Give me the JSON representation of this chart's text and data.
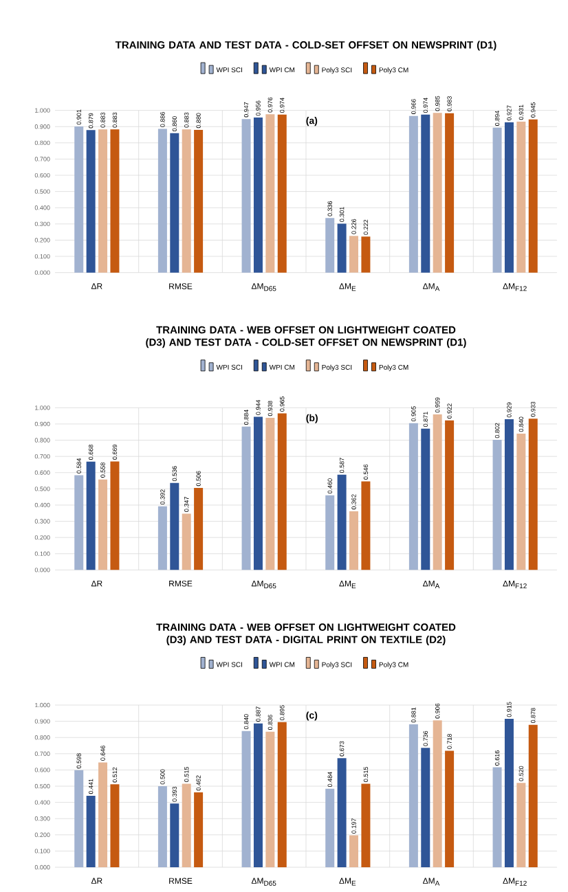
{
  "chart_data": [
    {
      "type": "bar",
      "title": "TRAINING DATA AND TEST DATA - COLD-SET OFFSET ON NEWSPRINT  (D1)",
      "categories": [
        "ΔR",
        "RMSE",
        "ΔM$_{D65}$",
        "ΔM$_{E}$",
        "ΔM$_{A}$",
        "ΔM$_{F12}$"
      ],
      "series": [
        {
          "name": "WPI SCI",
          "color": "#a1b2d0",
          "values": [
            0.901,
            0.886,
            0.947,
            0.336,
            0.966,
            0.894
          ],
          "value_labels": [
            "0.901",
            "0.886",
            "0.947",
            "0.336",
            "0.966",
            "0.894"
          ]
        },
        {
          "name": "WPI CM",
          "color": "#2f5597",
          "values": [
            0.879,
            0.86,
            0.956,
            0.301,
            0.974,
            0.927
          ],
          "value_labels": [
            "0.879",
            "0.860",
            "0.956",
            "0.301",
            "0.974",
            "0.927"
          ]
        },
        {
          "name": "Poly3 SCI",
          "color": "#e5b594",
          "values": [
            0.883,
            0.883,
            0.976,
            0.226,
            0.985,
            0.931
          ],
          "value_labels": [
            "0.883",
            "0.883",
            "0.976",
            "0.226",
            "0.985",
            "0.931"
          ]
        },
        {
          "name": "Poly3 CM",
          "color": "#c55a11",
          "values": [
            0.883,
            0.88,
            0.974,
            0.222,
            0.983,
            0.945
          ],
          "value_labels": [
            "0.883",
            "0.880",
            "0.974",
            "0.222",
            "0.983",
            "0.945"
          ]
        }
      ],
      "ylim": [
        0,
        1
      ],
      "yticks": [
        {
          "value": 0,
          "label": "0.000"
        },
        {
          "value": 0.1,
          "label": "0.100"
        },
        {
          "value": 0.2,
          "label": "0.200"
        },
        {
          "value": 0.3,
          "label": "0.300"
        },
        {
          "value": 0.4,
          "label": "0.400"
        },
        {
          "value": 0.5,
          "label": "0.500"
        },
        {
          "value": 0.6,
          "label": "0.600"
        },
        {
          "value": 0.7,
          "label": "0.700"
        },
        {
          "value": 0.8,
          "label": "0.800"
        },
        {
          "value": 0.9,
          "label": "0.900"
        },
        {
          "value": 1,
          "label": "1.000"
        }
      ],
      "grid": true,
      "legend": "top",
      "annotations": [
        "(a)"
      ]
    },
    {
      "type": "bar",
      "title": "TRAINING DATA - WEB OFFSET ON LIGHTWEIGHT COATED (D3) AND TEST DATA - COLD-SET OFFSET ON NEWSPRINT (D1)",
      "categories": [
        "ΔR",
        "RMSE",
        "ΔM$_{D65}$",
        "ΔM$_{E}$",
        "ΔM$_{A}$",
        "ΔM$_{F12}$"
      ],
      "series": [
        {
          "name": "WPI SCI",
          "color": "#a1b2d0",
          "values": [
            0.584,
            0.392,
            0.884,
            0.46,
            0.905,
            0.802
          ],
          "value_labels": [
            "0.584",
            "0.392",
            "0.884",
            "0.460",
            "0.905",
            "0.802"
          ]
        },
        {
          "name": "WPI CM",
          "color": "#2f5597",
          "values": [
            0.668,
            0.536,
            0.944,
            0.587,
            0.871,
            0.929
          ],
          "value_labels": [
            "0.668",
            "0.536",
            "0.944",
            "0.587",
            "0.871",
            "0.929"
          ]
        },
        {
          "name": "Poly3 SCI",
          "color": "#e5b594",
          "values": [
            0.558,
            0.347,
            0.938,
            0.362,
            0.959,
            0.84
          ],
          "value_labels": [
            "0.558",
            "0.347",
            "0.938",
            "0.362",
            "0.959",
            "0.840"
          ]
        },
        {
          "name": "Poly3 CM",
          "color": "#c55a11",
          "values": [
            0.669,
            0.506,
            0.965,
            0.546,
            0.922,
            0.933
          ],
          "value_labels": [
            "0.669",
            "0.506",
            "0.965",
            "0.546",
            "0.922",
            "0.933"
          ]
        }
      ],
      "ylim": [
        0,
        1
      ],
      "yticks": [
        {
          "value": 0,
          "label": "0.000"
        },
        {
          "value": 0.1,
          "label": "0.100"
        },
        {
          "value": 0.2,
          "label": "0.200"
        },
        {
          "value": 0.3,
          "label": "0.300"
        },
        {
          "value": 0.4,
          "label": "0.400"
        },
        {
          "value": 0.5,
          "label": "0.500"
        },
        {
          "value": 0.6,
          "label": "0.600"
        },
        {
          "value": 0.7,
          "label": "0.700"
        },
        {
          "value": 0.8,
          "label": "0.800"
        },
        {
          "value": 0.9,
          "label": "0.900"
        },
        {
          "value": 1,
          "label": "1.000"
        }
      ],
      "grid": true,
      "legend": "top",
      "annotations": [
        "(b)"
      ]
    },
    {
      "type": "bar",
      "title": "TRAINING DATA - WEB OFFSET ON LIGHTWEIGHT COATED (D3) AND TEST DATA - DIGITAL PRINT ON TEXTILE (D2)",
      "categories": [
        "ΔR",
        "RMSE",
        "ΔM$_{D65}$",
        "ΔM$_{E}$",
        "ΔM$_{A}$",
        "ΔM$_{F12}$"
      ],
      "series": [
        {
          "name": "WPI SCI",
          "color": "#a1b2d0",
          "values": [
            0.598,
            0.5,
            0.84,
            0.484,
            0.881,
            0.616
          ],
          "value_labels": [
            "0.598",
            "0.500",
            "0.840",
            "0.484",
            "0.881",
            "0.616"
          ]
        },
        {
          "name": "WPI CM",
          "color": "#2f5597",
          "values": [
            0.441,
            0.393,
            0.887,
            0.673,
            0.736,
            0.915
          ],
          "value_labels": [
            "0.441",
            "0.393",
            "0.887",
            "0.673",
            "0.736",
            "0.915"
          ]
        },
        {
          "name": "Poly3 SCI",
          "color": "#e5b594",
          "values": [
            0.646,
            0.515,
            0.836,
            0.197,
            0.906,
            0.52
          ],
          "value_labels": [
            "0.646",
            "0.515",
            "0.836",
            "0.197",
            "0.906",
            "0.520"
          ]
        },
        {
          "name": "Poly3 CM",
          "color": "#c55a11",
          "values": [
            0.512,
            0.462,
            0.895,
            0.515,
            0.718,
            0.878
          ],
          "value_labels": [
            "0.512",
            "0.462",
            "0.895",
            "0.515",
            "0.718",
            "0.878"
          ]
        }
      ],
      "ylim": [
        0,
        1
      ],
      "yticks": [
        {
          "value": 0,
          "label": "0.000"
        },
        {
          "value": 0.1,
          "label": "0.100"
        },
        {
          "value": 0.2,
          "label": "0.200"
        },
        {
          "value": 0.3,
          "label": "0.300"
        },
        {
          "value": 0.4,
          "label": "0.400"
        },
        {
          "value": 0.5,
          "label": "0.500"
        },
        {
          "value": 0.6,
          "label": "0.600"
        },
        {
          "value": 0.7,
          "label": "0.700"
        },
        {
          "value": 0.8,
          "label": "0.800"
        },
        {
          "value": 0.9,
          "label": "0.900"
        },
        {
          "value": 1,
          "label": "1.000"
        }
      ],
      "grid": true,
      "legend": "top",
      "annotations": [
        "(c)"
      ]
    }
  ]
}
